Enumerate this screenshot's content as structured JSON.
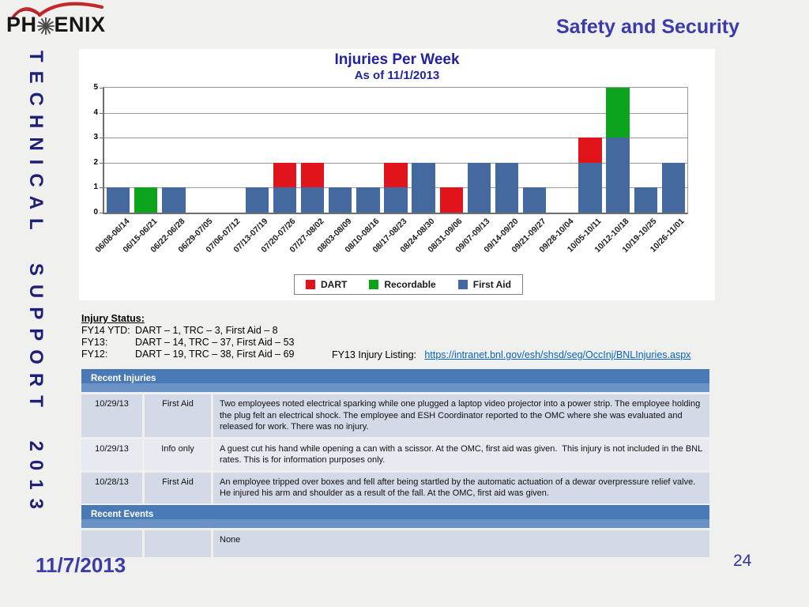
{
  "slide": {
    "title": "Safety and Security",
    "side_banner": "TECHNICAL SUPPORT 2013",
    "footer_date": "11/7/2013",
    "page_number": "24",
    "logo": {
      "text_left": "PH",
      "text_right": "ENIX"
    }
  },
  "chart_data": {
    "type": "bar",
    "stacked": true,
    "title": "Injuries Per Week",
    "subtitle": "As of 11/1/2013",
    "categories": [
      "06/08-06/14",
      "06/15-06/21",
      "06/22-06/28",
      "06/29-07/05",
      "07/06-07/12",
      "07/13-07/19",
      "07/20-07/26",
      "07/27-08/02",
      "08/03-08/09",
      "08/10-08/16",
      "08/17-08/23",
      "08/24-08/30",
      "08/31-09/06",
      "09/07-09/13",
      "09/14-09/20",
      "09/21-09/27",
      "09/28-10/04",
      "10/05-10/11",
      "10/12-10/18",
      "10/19-10/25",
      "10/26-11/01"
    ],
    "series": [
      {
        "name": "First Aid",
        "color": "#44699E",
        "values": [
          1,
          0,
          1,
          0,
          0,
          1,
          1,
          1,
          1,
          1,
          1,
          2,
          0,
          2,
          2,
          1,
          0,
          2,
          3,
          1,
          2
        ]
      },
      {
        "name": "DART",
        "color": "#E1141C",
        "values": [
          0,
          0,
          0,
          0,
          0,
          0,
          1,
          1,
          0,
          0,
          1,
          0,
          1,
          0,
          0,
          0,
          0,
          1,
          0,
          0,
          0
        ]
      },
      {
        "name": "Recordable",
        "color": "#0CA41C",
        "values": [
          0,
          1,
          0,
          0,
          0,
          0,
          0,
          0,
          0,
          0,
          0,
          0,
          0,
          0,
          0,
          0,
          0,
          0,
          2,
          0,
          0
        ]
      }
    ],
    "legend_order": [
      1,
      2,
      0
    ],
    "ylim": [
      0,
      5
    ],
    "yticks": [
      0,
      1,
      2,
      3,
      4,
      5
    ],
    "grid": true,
    "legend_position": "bottom-center"
  },
  "injury_status": {
    "heading": "Injury Status:",
    "lines": [
      {
        "label": "FY14 YTD:",
        "text": "DART – 1, TRC – 3, First Aid – 8"
      },
      {
        "label": "FY13:",
        "text": "DART – 14, TRC – 37, First Aid – 53"
      },
      {
        "label": "FY12:",
        "text": "DART – 19, TRC – 38, First Aid – 69"
      }
    ],
    "listing_label": "FY13 Injury Listing:",
    "listing_url": "https://intranet.bnl.gov/esh/shsd/seg/OccInj/BNLInjuries.aspx"
  },
  "recent_injuries": {
    "header": "Recent Injuries",
    "rows": [
      {
        "date": "10/29/13",
        "type": "First Aid",
        "description": "Two employees noted electrical sparking while one plugged a laptop video projector into a power strip. The employee holding the plug felt an electrical shock. The employee and ESH Coordinator reported to the OMC where she was evaluated and released for work. There was no injury."
      },
      {
        "date": "10/29/13",
        "type": "Info only",
        "description": "A guest cut his hand while opening a can with a scissor. At the OMC, first aid was given.  This injury is not included in the BNL rates. This is for information purposes only."
      },
      {
        "date": "10/28/13",
        "type": "First Aid",
        "description": "An employee tripped over boxes and fell after being startled by the automatic actuation of a dewar overpressure relief valve. He injured his arm and shoulder as a result of the fall. At the OMC, first aid was given."
      }
    ]
  },
  "recent_events": {
    "header": "Recent Events",
    "rows": [
      {
        "date": "",
        "type": "",
        "description": "None"
      }
    ]
  }
}
